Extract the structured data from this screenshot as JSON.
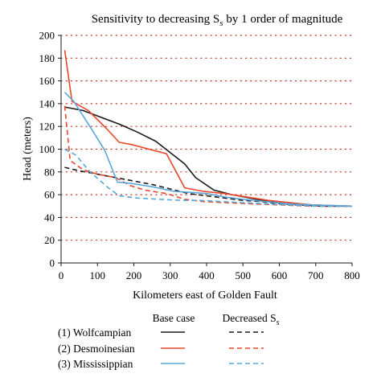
{
  "chart_data": {
    "type": "line",
    "title": "Sensitivity to decreasing S",
    "title_subscript": "s",
    "title_suffix": " by 1 order of magnitude",
    "xlabel": "Kilometers east of Golden Fault",
    "ylabel": "Head (meters)",
    "xlim": [
      0,
      800
    ],
    "ylim": [
      0,
      200
    ],
    "xticks": [
      0,
      100,
      200,
      300,
      400,
      500,
      600,
      700,
      800
    ],
    "yticks": [
      0,
      20,
      40,
      60,
      80,
      100,
      120,
      140,
      160,
      180,
      200
    ],
    "grid": "horizontal dotted",
    "legend": {
      "placement": "bottom",
      "col_base": "Base case",
      "col_decreased": "Decreased S",
      "col_decreased_subscript": "s",
      "rows": [
        "(1) Wolfcampian",
        "(2) Desmoinesian",
        "(3) Mississippian"
      ]
    },
    "colors": {
      "wolfcampian": "#1a1a1a",
      "desmoinesian": "#e8472a",
      "mississippian": "#5aa8db"
    },
    "series": [
      {
        "name": "(1) Wolfcampian",
        "case": "Base case",
        "color": "#1a1a1a",
        "dash": false,
        "points": [
          [
            10,
            137
          ],
          [
            60,
            134
          ],
          [
            110,
            128
          ],
          [
            160,
            122
          ],
          [
            210,
            115
          ],
          [
            260,
            107
          ],
          [
            300,
            97
          ],
          [
            340,
            87
          ],
          [
            370,
            75
          ],
          [
            420,
            64
          ],
          [
            470,
            60
          ],
          [
            520,
            57
          ],
          [
            570,
            54
          ],
          [
            620,
            52
          ],
          [
            670,
            51
          ],
          [
            720,
            50
          ],
          [
            800,
            50
          ]
        ]
      },
      {
        "name": "(1) Wolfcampian",
        "case": "Decreased S",
        "color": "#1a1a1a",
        "dash": true,
        "points": [
          [
            10,
            84
          ],
          [
            50,
            81
          ],
          [
            100,
            78
          ],
          [
            150,
            75
          ],
          [
            200,
            72
          ],
          [
            250,
            69
          ],
          [
            300,
            65
          ],
          [
            350,
            61
          ],
          [
            400,
            59
          ],
          [
            450,
            57
          ],
          [
            500,
            55
          ],
          [
            550,
            54
          ],
          [
            600,
            52
          ],
          [
            650,
            51
          ],
          [
            700,
            50
          ],
          [
            800,
            50
          ]
        ]
      },
      {
        "name": "(2) Desmoinesian",
        "case": "Base case",
        "color": "#e8472a",
        "dash": false,
        "points": [
          [
            10,
            187
          ],
          [
            30,
            142
          ],
          [
            75,
            134
          ],
          [
            125,
            118
          ],
          [
            160,
            106
          ],
          [
            195,
            104
          ],
          [
            230,
            101
          ],
          [
            290,
            96
          ],
          [
            340,
            66
          ],
          [
            390,
            63
          ],
          [
            450,
            61
          ],
          [
            510,
            58
          ],
          [
            570,
            55
          ],
          [
            630,
            53
          ],
          [
            690,
            51
          ],
          [
            800,
            50
          ]
        ]
      },
      {
        "name": "(2) Desmoinesian",
        "case": "Decreased S",
        "color": "#e8472a",
        "dash": true,
        "points": [
          [
            10,
            138
          ],
          [
            25,
            90
          ],
          [
            60,
            82
          ],
          [
            100,
            78
          ],
          [
            150,
            75
          ],
          [
            190,
            68
          ],
          [
            230,
            64
          ],
          [
            290,
            61
          ],
          [
            340,
            56
          ],
          [
            390,
            54
          ],
          [
            450,
            53
          ],
          [
            520,
            52
          ],
          [
            600,
            51
          ],
          [
            680,
            50
          ],
          [
            800,
            50
          ]
        ]
      },
      {
        "name": "(3) Mississippian",
        "case": "Base case",
        "color": "#5aa8db",
        "dash": false,
        "points": [
          [
            10,
            150
          ],
          [
            35,
            142
          ],
          [
            85,
            117
          ],
          [
            120,
            99
          ],
          [
            155,
            71
          ],
          [
            190,
            70
          ],
          [
            250,
            67
          ],
          [
            310,
            63
          ],
          [
            360,
            62
          ],
          [
            400,
            61
          ],
          [
            450,
            58
          ],
          [
            500,
            56
          ],
          [
            560,
            54
          ],
          [
            620,
            52
          ],
          [
            690,
            51
          ],
          [
            800,
            50
          ]
        ]
      },
      {
        "name": "(3) Mississippian",
        "case": "Decreased S",
        "color": "#5aa8db",
        "dash": true,
        "points": [
          [
            10,
            100
          ],
          [
            40,
            95
          ],
          [
            80,
            80
          ],
          [
            130,
            66
          ],
          [
            160,
            59
          ],
          [
            210,
            57
          ],
          [
            270,
            56
          ],
          [
            330,
            55
          ],
          [
            380,
            55
          ],
          [
            440,
            54
          ],
          [
            500,
            53
          ],
          [
            560,
            52
          ],
          [
            620,
            51
          ],
          [
            700,
            50
          ],
          [
            800,
            50
          ]
        ]
      }
    ]
  }
}
